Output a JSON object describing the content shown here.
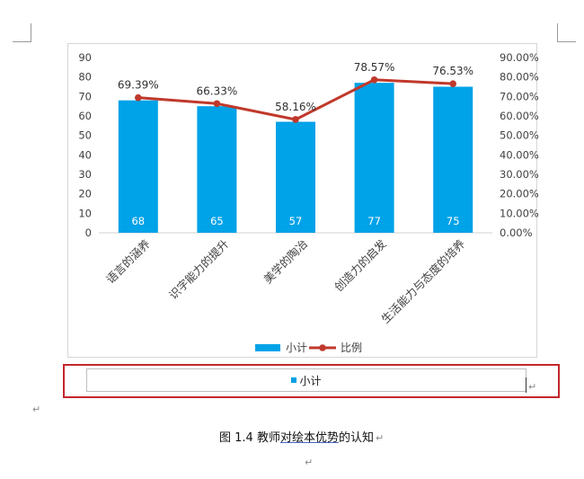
{
  "chart_data": {
    "type": "bar",
    "categories": [
      "语言的涵养",
      "识字能力的提升",
      "美学的陶冶",
      "创造力的启发",
      "生活能力与态度的培养"
    ],
    "series": [
      {
        "name": "小计",
        "type": "bar",
        "axis": "left",
        "values": [
          68,
          65,
          57,
          77,
          75
        ],
        "data_labels": [
          "68",
          "65",
          "57",
          "77",
          "75"
        ],
        "color": "#00a2e8"
      },
      {
        "name": "比例",
        "type": "line",
        "axis": "right",
        "values": [
          69.39,
          66.33,
          58.16,
          78.57,
          76.53
        ],
        "data_labels": [
          "69.39%",
          "66.33%",
          "58.16%",
          "78.57%",
          "76.53%"
        ],
        "color": "#c0392b"
      }
    ],
    "y_left": {
      "min": 0,
      "max": 90,
      "step": 10,
      "tick_labels": [
        "0",
        "10",
        "20",
        "30",
        "40",
        "50",
        "60",
        "70",
        "80",
        "90"
      ]
    },
    "y_right": {
      "min": 0,
      "max": 90,
      "step": 10,
      "unit": "%",
      "tick_labels": [
        "0.00%",
        "10.00%",
        "20.00%",
        "30.00%",
        "40.00%",
        "50.00%",
        "60.00%",
        "70.00%",
        "80.00%",
        "90.00%"
      ]
    },
    "grid": false,
    "legend_position": "bottom"
  },
  "legend": {
    "bar_label": "小计",
    "line_label": "比例"
  },
  "inner_legend": {
    "label": "小计"
  },
  "caption": {
    "prefix": "图 1.4  教师",
    "highlight": "对绘本优势",
    "suffix": "的认知"
  },
  "marks": {
    "paragraph": "↵"
  },
  "colors": {
    "bar": "#00a2e8",
    "line": "#c0392b",
    "selection": "#c3272b"
  }
}
